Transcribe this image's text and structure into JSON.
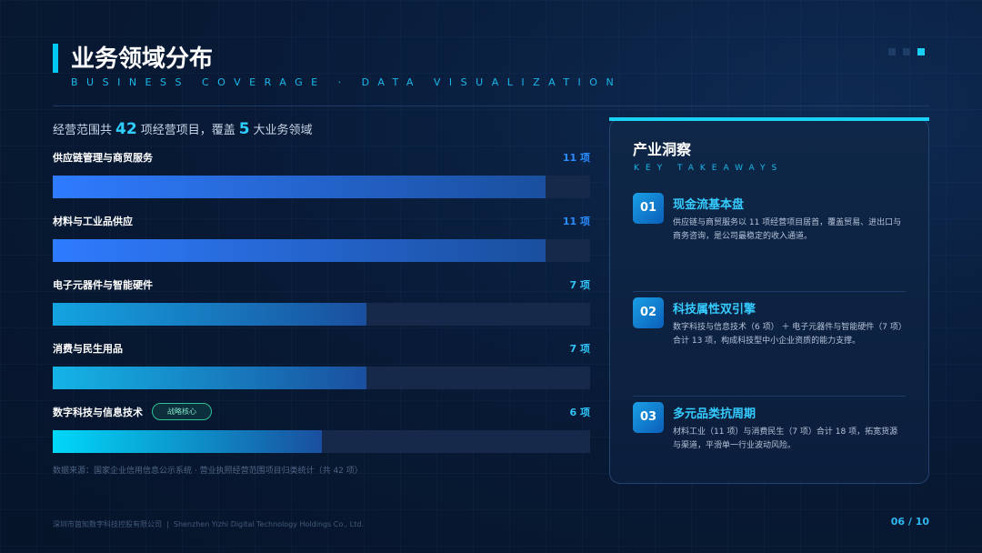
{
  "header": {
    "title": "业务领域分布",
    "subtitle": "BUSINESS COVERAGE · DATA VISUALIZATION"
  },
  "summary": {
    "before": "经营范围共",
    "total": 42,
    "middle": "项经营项目，覆盖",
    "domains": 5,
    "after": "大业务领域"
  },
  "chart_data": {
    "type": "bar",
    "orientation": "horizontal",
    "categories": [
      "供应链管理与商贸服务",
      "材料与工业品供应",
      "电子元器件与智能硬件",
      "消费与民生用品",
      "数字科技与信息技术"
    ],
    "values": [
      11,
      11,
      7,
      7,
      6
    ],
    "value_labels": [
      "11 项",
      "11 项",
      "7 项",
      "7 项",
      "6 项"
    ],
    "colors": [
      "#2f7bff",
      "#2f7bff",
      "#14a3e0",
      "#14b4e6",
      "#00d8f8"
    ],
    "xlim": [
      0,
      12
    ],
    "annotation": "战略核心",
    "source": "数据来源：国家企业信用信息公示系统 · 营业执照经营范围项目归类统计（共 42 项）"
  },
  "panel": {
    "title": "产业洞察",
    "subtitle": "KEY TAKEAWAYS",
    "items": [
      {
        "number": "01",
        "title": "现金流基本盘",
        "text": "供应链与商贸服务以 11 项经营项目居首，覆盖贸易、进出口与商务咨询，是公司最稳定的收入通道。"
      },
      {
        "number": "02",
        "title": "科技属性双引擎",
        "text": "数字科技与信息技术（6 项） ＋ 电子元器件与智能硬件（7 项）合计 13 项，构成科技型中小企业资质的能力支撑。"
      },
      {
        "number": "03",
        "title": "多元品类抗周期",
        "text": "材料工业（11 项）与消费民生（7 项）合计 18 项，拓宽货源与渠道，平滑单一行业波动风险。"
      }
    ]
  },
  "footer": {
    "company": "深圳市茵知数字科技控股有限公司  |  Shenzhen Yizhi Digital Technology Holdings Co., Ltd.",
    "page": "06 / 10"
  }
}
